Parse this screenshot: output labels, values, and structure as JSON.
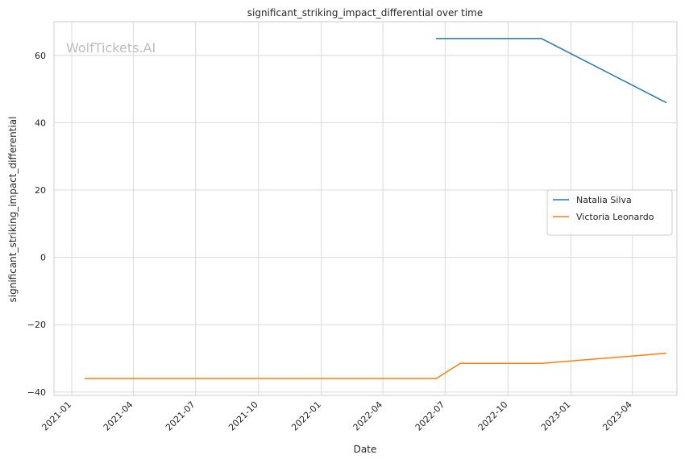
{
  "chart_data": {
    "type": "line",
    "title": "significant_striking_impact_differential over time",
    "xlabel": "Date",
    "ylabel": "significant_striking_impact_differential",
    "watermark": "WolfTickets.AI",
    "ylim": [
      -41,
      70
    ],
    "xlim": [
      "2020-12-06",
      "2023-06-05"
    ],
    "grid": true,
    "legend_position": "center-right",
    "yticks": [
      -40,
      -20,
      0,
      20,
      40,
      60
    ],
    "xticks": [
      "2021-01",
      "2021-04",
      "2021-07",
      "2021-10",
      "2022-01",
      "2022-04",
      "2022-07",
      "2022-10",
      "2023-01",
      "2023-04"
    ],
    "series": [
      {
        "name": "Natalia Silva",
        "color": "#1f77b4",
        "points": [
          {
            "x": "2022-06-18",
            "y": 65
          },
          {
            "x": "2022-11-19",
            "y": 65
          },
          {
            "x": "2023-05-20",
            "y": 46
          }
        ]
      },
      {
        "name": "Victoria Leonardo",
        "color": "#ff7f0e",
        "points": [
          {
            "x": "2021-01-20",
            "y": -36
          },
          {
            "x": "2022-06-18",
            "y": -36
          },
          {
            "x": "2022-07-23",
            "y": -31.5
          },
          {
            "x": "2022-11-19",
            "y": -31.5
          },
          {
            "x": "2023-05-20",
            "y": -28.5
          }
        ]
      }
    ]
  }
}
